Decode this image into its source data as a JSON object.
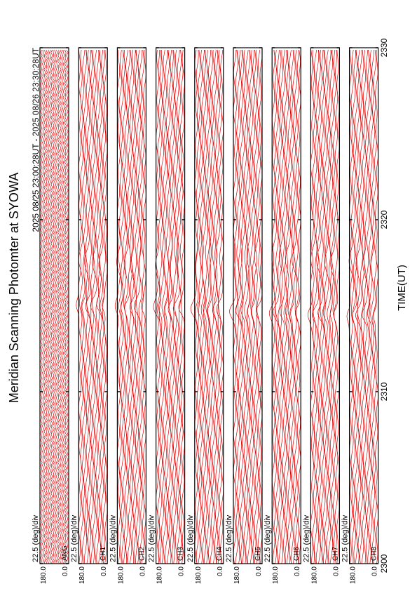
{
  "title": "Meridian Scanning Photomter at SYOWA",
  "subtitle": "2025 08/25 23:00:28UT - 2025 08/26 23:30:28UT",
  "axis": {
    "label": "TIME(UT)",
    "xlim": [
      2300,
      2330
    ],
    "xticks": [
      2300,
      2310,
      2320,
      2330
    ]
  },
  "panels": [
    {
      "channel": "ANG",
      "scale": "22.5 (deg)/div",
      "ymax": "180.0",
      "ymin": "0.0"
    },
    {
      "channel": "CH1",
      "scale": "22.5 (deg)/div",
      "ymax": "180.0",
      "ymin": "0.0"
    },
    {
      "channel": "CH2",
      "scale": "22.5 (deg)/div",
      "ymax": "180.0",
      "ymin": "0.0"
    },
    {
      "channel": "CH3",
      "scale": "22.5 (deg)/div",
      "ymax": "180.0",
      "ymin": "0.0"
    },
    {
      "channel": "CH4",
      "scale": "22.5 (deg)/div",
      "ymax": "180.0",
      "ymin": "0.0"
    },
    {
      "channel": "CH5",
      "scale": "22.5 (deg)/div",
      "ymax": "180.0",
      "ymin": "0.0"
    },
    {
      "channel": "CH6",
      "scale": "22.5 (deg)/div",
      "ymax": "180.0",
      "ymin": "0.0"
    },
    {
      "channel": "CH7",
      "scale": "22.5 (deg)/div",
      "ymax": "180.0",
      "ymin": "0.0"
    },
    {
      "channel": "CH8",
      "scale": "22.5 (deg)/div",
      "ymax": "180.0",
      "ymin": "0.0"
    }
  ]
}
